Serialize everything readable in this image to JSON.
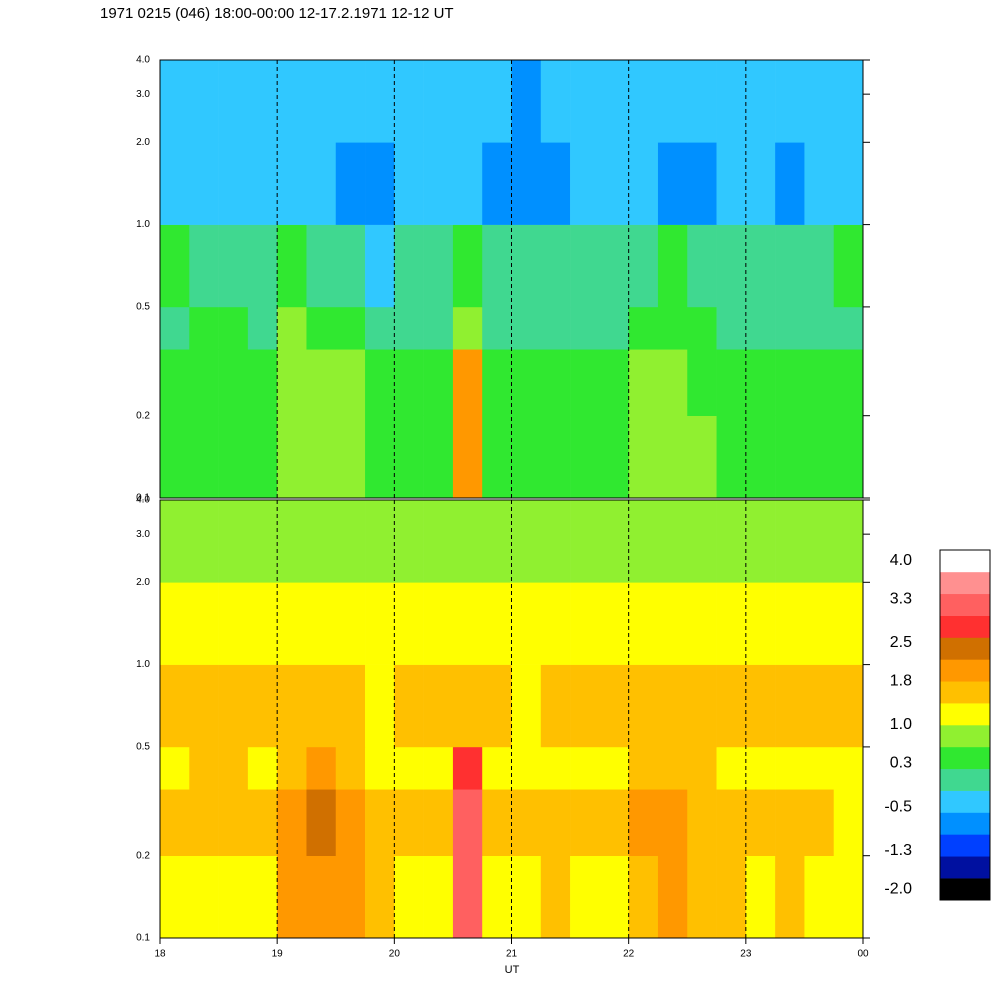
{
  "chart_data": {
    "type": "heatmap",
    "title": "1971 0215 (046) 18:00-00:00 12-17.2.1971  12-12 UT",
    "x_label": "UT",
    "xlim": [
      18,
      24
    ],
    "xticks": [
      18,
      19,
      20,
      21,
      22,
      23,
      {
        "value": 24,
        "label": "00"
      }
    ],
    "ylim": [
      0.1,
      4.0
    ],
    "log_y": true,
    "yticks": [
      0.1,
      0.2,
      0.5,
      {
        "value": 1,
        "label": "1.0"
      },
      {
        "value": 2,
        "label": "2.0"
      },
      {
        "value": 3,
        "label": "3.0"
      },
      {
        "value": 4,
        "label": "4.0"
      }
    ],
    "grid": true,
    "x_bins": [
      18,
      18.25,
      18.5,
      18.75,
      19,
      19.25,
      19.5,
      19.75,
      20,
      20.25,
      20.5,
      20.75,
      21,
      21.25,
      21.5,
      21.75,
      22,
      22.25,
      22.5,
      22.75,
      23,
      23.25,
      23.5,
      23.75,
      24
    ],
    "y_bins": [
      0.1,
      0.2,
      0.35,
      0.5,
      1.0,
      2.0,
      4.0
    ],
    "clim": [
      -2.2,
      4.2
    ],
    "colors": [
      "#000000",
      "#0010a0",
      "#0040ff",
      "#0090ff",
      "#30c8ff",
      "#40d890",
      "#30e830",
      "#90f030",
      "#ffff00",
      "#ffc000",
      "#ff9800",
      "#d07000",
      "#ff3030",
      "#ff6060",
      "#ff9090",
      "#ffffff"
    ],
    "cticks": [
      {
        "value": 4,
        "label": "4.0"
      },
      3.3,
      2.5,
      1.8,
      {
        "value": 1,
        "label": "1.0"
      },
      0.3,
      -0.5,
      -1.3,
      {
        "value": -2,
        "label": "-2.0"
      }
    ],
    "panels": [
      {
        "values": [
          [
            0.4,
            0.4,
            0.5,
            0.4,
            0.8,
            0.9,
            0.7,
            0.5,
            0.4,
            0.4,
            1.8,
            0.5,
            0.4,
            0.5,
            0.4,
            0.4,
            0.7,
            0.8,
            0.6,
            0.5,
            0.4,
            0.4,
            0.4,
            0.3
          ],
          [
            0.3,
            0.3,
            0.4,
            0.3,
            0.8,
            0.8,
            0.6,
            0.4,
            0.3,
            0.3,
            1.8,
            0.4,
            0.3,
            0.4,
            0.3,
            0.3,
            0.6,
            0.7,
            0.5,
            0.4,
            0.3,
            0.3,
            0.3,
            0.2
          ],
          [
            0.1,
            0.2,
            0.2,
            0.1,
            0.6,
            0.5,
            0.3,
            0.0,
            0.1,
            0.1,
            0.6,
            0.1,
            0.0,
            0.1,
            0.0,
            0.1,
            0.3,
            0.4,
            0.2,
            0.1,
            0.0,
            0.0,
            0.1,
            0.1
          ],
          [
            0.2,
            0.1,
            0.1,
            0.0,
            0.2,
            0.1,
            0.0,
            -0.3,
            0.0,
            0.1,
            0.3,
            -0.1,
            -0.2,
            0.0,
            -0.2,
            0.1,
            0.1,
            0.2,
            0.0,
            -0.1,
            -0.1,
            0.0,
            0.1,
            0.2
          ],
          [
            -0.6,
            -0.4,
            -0.3,
            -0.5,
            -0.4,
            -0.6,
            -0.8,
            -0.7,
            -0.5,
            -0.6,
            -0.5,
            -0.9,
            -1.0,
            -0.7,
            -0.6,
            -0.5,
            -0.6,
            -0.8,
            -0.7,
            -0.6,
            -0.6,
            -0.7,
            -0.5,
            -0.4
          ],
          [
            -0.4,
            -0.5,
            -0.3,
            -0.4,
            -0.3,
            -0.5,
            -0.6,
            -0.5,
            -0.4,
            -0.3,
            -0.4,
            -0.6,
            -0.7,
            -0.5,
            -0.4,
            -0.5,
            -0.5,
            -0.6,
            -0.5,
            -0.4,
            -0.4,
            -0.5,
            -0.4,
            -0.3
          ]
        ]
      },
      {
        "values": [
          [
            1.1,
            1.2,
            1.3,
            1.1,
            2.0,
            2.1,
            1.8,
            1.4,
            1.2,
            1.3,
            3.0,
            1.3,
            1.2,
            1.4,
            1.3,
            1.2,
            1.7,
            1.8,
            1.6,
            1.4,
            1.3,
            1.4,
            1.2,
            1.1
          ],
          [
            1.4,
            1.4,
            1.5,
            1.4,
            2.1,
            2.2,
            1.9,
            1.5,
            1.4,
            1.5,
            3.0,
            1.5,
            1.4,
            1.5,
            1.4,
            1.4,
            1.8,
            1.9,
            1.7,
            1.6,
            1.5,
            1.5,
            1.4,
            1.3
          ],
          [
            1.3,
            1.4,
            1.4,
            1.3,
            1.7,
            1.8,
            1.6,
            1.3,
            1.2,
            1.3,
            2.6,
            1.3,
            1.2,
            1.3,
            1.2,
            1.2,
            1.5,
            1.6,
            1.4,
            1.3,
            1.2,
            1.3,
            1.2,
            1.1
          ],
          [
            1.5,
            1.6,
            1.5,
            1.4,
            1.5,
            1.6,
            1.5,
            1.3,
            1.4,
            1.5,
            1.7,
            1.4,
            1.3,
            1.4,
            1.4,
            1.4,
            1.6,
            1.6,
            1.5,
            1.5,
            1.5,
            1.6,
            1.5,
            1.4
          ],
          [
            1.2,
            1.3,
            1.2,
            1.1,
            1.2,
            1.3,
            1.2,
            1.0,
            1.1,
            1.2,
            1.3,
            1.1,
            1.0,
            1.1,
            1.1,
            1.2,
            1.2,
            1.3,
            1.2,
            1.1,
            1.1,
            1.2,
            1.2,
            1.1
          ],
          [
            0.8,
            0.9,
            0.8,
            0.7,
            0.8,
            0.9,
            0.8,
            0.7,
            0.8,
            0.8,
            0.9,
            0.7,
            0.7,
            0.8,
            0.8,
            0.8,
            0.8,
            0.9,
            0.8,
            0.8,
            0.8,
            0.8,
            0.8,
            0.7
          ]
        ]
      }
    ]
  }
}
